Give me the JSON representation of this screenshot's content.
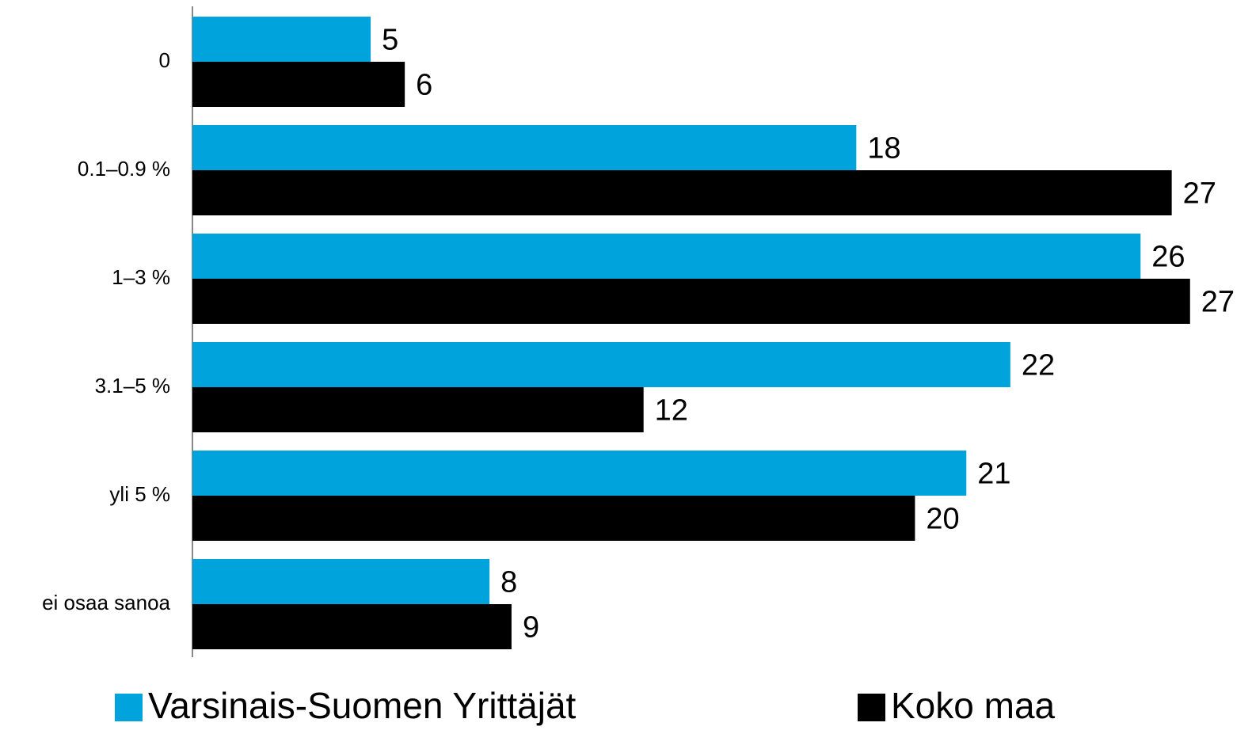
{
  "chart_data": {
    "type": "hbar",
    "categories": [
      "0",
      "0.1–0.9 %",
      "1–3 %",
      "3.1–5 %",
      "yli 5 %",
      "ei osaa sanoa"
    ],
    "series": [
      {
        "name": "Varsinais-Suomen Yrittäjät",
        "color": "#00a3dc",
        "values": [
          4.86,
          18.1,
          25.85,
          22.3,
          21.1,
          8.1
        ],
        "value_labels": [
          "5",
          "18",
          "26",
          "22",
          "21",
          "8"
        ]
      },
      {
        "name": "Koko maa",
        "color": "#000000",
        "values": [
          5.79,
          26.7,
          27.2,
          12.3,
          19.7,
          8.7
        ],
        "value_labels": [
          "6",
          "27",
          "27",
          "12",
          "20",
          "9"
        ]
      }
    ],
    "xlim": [
      0,
      28.5
    ]
  }
}
